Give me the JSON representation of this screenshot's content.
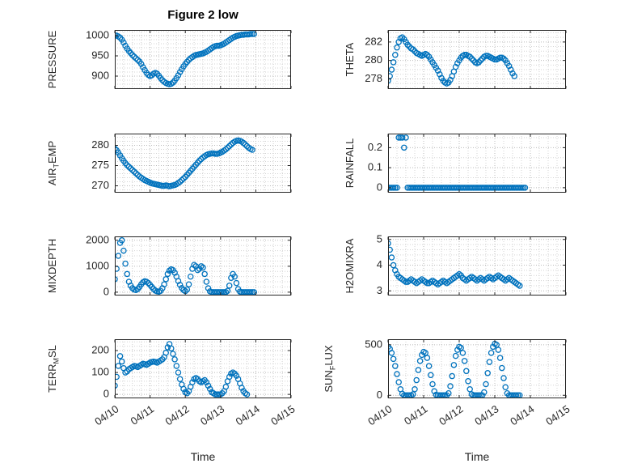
{
  "figure": {
    "title": "Figure 2 low",
    "xlabel": "Time",
    "marker_color": "#0072BD",
    "axis_color": "#262626",
    "grid_major_color": "#b9b9b9",
    "grid_minor_color": "#d3d3d3",
    "x_tick_labels": [
      "04/10",
      "04/11",
      "04/12",
      "04/13",
      "04/14",
      "04/15"
    ],
    "xlim_days": [
      0,
      5
    ],
    "x_minor_step": 0.25,
    "x_unit": "days from 04/10"
  },
  "chart_data": [
    {
      "type": "scatter",
      "id": "PRESSURE",
      "position": "row1-left",
      "ylabel": {
        "pre": "PRESSURE",
        "sub": "",
        "post": ""
      },
      "y_ticks": [
        900,
        950,
        1000
      ],
      "ylim": [
        868,
        1014
      ],
      "y_minor_step": 10,
      "x_start": 0,
      "x_step": 0.05,
      "values": [
        1001,
        1000,
        998,
        995,
        990,
        983,
        975,
        968,
        962,
        957,
        952,
        948,
        944,
        940,
        936,
        930,
        922,
        915,
        908,
        903,
        900,
        902,
        906,
        908,
        906,
        901,
        895,
        890,
        886,
        883,
        881,
        880,
        881,
        884,
        889,
        895,
        902,
        910,
        917,
        924,
        930,
        935,
        940,
        944,
        947,
        950,
        952,
        953,
        954,
        955,
        956,
        958,
        960,
        963,
        966,
        969,
        972,
        974,
        975,
        975,
        976,
        978,
        980,
        983,
        986,
        989,
        992,
        995,
        997,
        999,
        1000,
        1001,
        1002,
        1002,
        1003,
        1003,
        1003,
        1004,
        1004,
        1004
      ]
    },
    {
      "type": "scatter",
      "id": "THETA",
      "position": "row1-right",
      "ylabel": {
        "pre": "THETA",
        "sub": "",
        "post": ""
      },
      "y_ticks": [
        278,
        280,
        282
      ],
      "ylim": [
        276.9,
        283.3
      ],
      "y_minor_step": 0.5,
      "x_start": 0,
      "x_step": 0.05,
      "values": [
        277.8,
        278.3,
        279.0,
        279.8,
        280.6,
        281.4,
        282.0,
        282.4,
        282.5,
        282.3,
        282.0,
        281.7,
        281.5,
        281.3,
        281.2,
        281.0,
        280.8,
        280.7,
        280.6,
        280.5,
        280.6,
        280.7,
        280.6,
        280.4,
        280.1,
        279.8,
        279.5,
        279.2,
        278.9,
        278.5,
        278.1,
        277.8,
        277.6,
        277.5,
        277.6,
        277.9,
        278.3,
        278.8,
        279.3,
        279.7,
        280.0,
        280.3,
        280.5,
        280.6,
        280.6,
        280.5,
        280.4,
        280.2,
        280.0,
        279.8,
        279.7,
        279.8,
        280.0,
        280.2,
        280.4,
        280.5,
        280.5,
        280.4,
        280.3,
        280.2,
        280.1,
        280.1,
        280.2,
        280.3,
        280.3,
        280.2,
        280.0,
        279.7,
        279.4,
        279.0,
        278.6,
        278.3,
        null,
        null,
        null,
        null,
        null,
        null,
        null,
        null
      ]
    },
    {
      "type": "scatter",
      "id": "AIR_TEMP",
      "position": "row2-left",
      "ylabel": {
        "pre": "AIR",
        "sub": "T",
        "post": "EMP"
      },
      "y_ticks": [
        270,
        275,
        280
      ],
      "ylim": [
        268.3,
        282.9
      ],
      "y_minor_step": 1,
      "x_start": 0,
      "x_step": 0.05,
      "values": [
        279.2,
        278.8,
        278.2,
        277.5,
        276.8,
        276.2,
        275.6,
        275.1,
        274.7,
        274.3,
        273.9,
        273.5,
        273.1,
        272.7,
        272.3,
        272.0,
        271.7,
        271.4,
        271.2,
        271.0,
        270.8,
        270.6,
        270.5,
        270.4,
        270.3,
        270.2,
        270.1,
        270.0,
        270.0,
        270.1,
        270.0,
        269.9,
        270.0,
        270.1,
        270.2,
        270.4,
        270.7,
        271.0,
        271.4,
        271.8,
        272.2,
        272.7,
        273.2,
        273.7,
        274.2,
        274.7,
        275.2,
        275.7,
        276.2,
        276.6,
        277.0,
        277.3,
        277.6,
        277.8,
        277.9,
        278.0,
        278.0,
        277.9,
        277.9,
        278.0,
        278.2,
        278.4,
        278.7,
        279.0,
        279.4,
        279.8,
        280.2,
        280.6,
        280.9,
        281.1,
        281.2,
        281.1,
        280.9,
        280.6,
        280.2,
        279.8,
        279.4,
        279.1,
        278.9,
        null
      ]
    },
    {
      "type": "scatter",
      "id": "RAINFALL",
      "position": "row2-right",
      "ylabel": {
        "pre": "RAINFALL",
        "sub": "",
        "post": ""
      },
      "y_ticks": [
        0,
        0.1,
        0.2
      ],
      "ylim": [
        -0.025,
        0.27
      ],
      "y_minor_step": 0.05,
      "x_start": 0,
      "x_step": 0.05,
      "values": [
        0,
        0,
        0,
        0,
        0,
        0,
        0.25,
        0.25,
        0.25,
        0.2,
        0.25,
        0,
        0,
        0,
        0,
        0,
        0,
        0,
        0,
        0,
        0,
        0,
        0,
        0,
        0,
        0,
        0,
        0,
        0,
        0,
        0,
        0,
        0,
        0,
        0,
        0,
        0,
        0,
        0,
        0,
        0,
        0,
        0,
        0,
        0,
        0,
        0,
        0,
        0,
        0,
        0,
        0,
        0,
        0,
        0,
        0,
        0,
        0,
        0,
        0,
        0,
        0,
        0,
        0,
        0,
        0,
        0,
        0,
        0,
        0,
        0,
        0,
        0,
        0,
        0,
        0,
        0,
        0,
        null,
        null
      ]
    },
    {
      "type": "scatter",
      "id": "MIXDEPTH",
      "position": "row3-left",
      "ylabel": {
        "pre": "MIXDEPTH",
        "sub": "",
        "post": ""
      },
      "y_ticks": [
        0,
        1000,
        2000
      ],
      "ylim": [
        -130,
        2150
      ],
      "y_minor_step": 200,
      "x_start": 0,
      "x_step": 0.05,
      "values": [
        500,
        900,
        1400,
        1900,
        2000,
        1600,
        1100,
        700,
        400,
        250,
        150,
        100,
        80,
        120,
        200,
        300,
        380,
        420,
        400,
        350,
        280,
        200,
        120,
        60,
        30,
        20,
        50,
        150,
        300,
        500,
        700,
        830,
        880,
        850,
        750,
        600,
        430,
        280,
        160,
        80,
        40,
        100,
        300,
        600,
        900,
        1050,
        1000,
        850,
        900,
        1000,
        950,
        700,
        400,
        150,
        30,
        0,
        0,
        0,
        0,
        0,
        0,
        0,
        0,
        0,
        50,
        250,
        550,
        700,
        600,
        350,
        120,
        20,
        0,
        0,
        0,
        0,
        0,
        0,
        0,
        0
      ]
    },
    {
      "type": "scatter",
      "id": "H2OMIXRA",
      "position": "row3-right",
      "ylabel": {
        "pre": "H2OMIXRA",
        "sub": "",
        "post": ""
      },
      "y_ticks": [
        3,
        4,
        5
      ],
      "ylim": [
        2.82,
        5.12
      ],
      "y_minor_step": 0.2,
      "x_start": 0,
      "x_step": 0.05,
      "values": [
        4.85,
        4.6,
        4.3,
        4.0,
        3.8,
        3.65,
        3.55,
        3.5,
        3.45,
        3.4,
        3.35,
        3.35,
        3.4,
        3.45,
        3.4,
        3.35,
        3.3,
        3.35,
        3.4,
        3.45,
        3.4,
        3.35,
        3.3,
        3.3,
        3.35,
        3.4,
        3.35,
        3.3,
        3.25,
        3.3,
        3.35,
        3.4,
        3.35,
        3.3,
        3.35,
        3.4,
        3.45,
        3.5,
        3.55,
        3.6,
        3.65,
        3.6,
        3.5,
        3.45,
        3.4,
        3.45,
        3.5,
        3.55,
        3.5,
        3.45,
        3.4,
        3.45,
        3.5,
        3.45,
        3.4,
        3.45,
        3.5,
        3.55,
        3.5,
        3.45,
        3.5,
        3.55,
        3.6,
        3.55,
        3.5,
        3.45,
        3.4,
        3.45,
        3.5,
        3.45,
        3.4,
        3.35,
        3.3,
        3.25,
        3.2,
        null,
        null,
        null,
        null,
        null
      ]
    },
    {
      "type": "scatter",
      "id": "TERR_MSL",
      "position": "row4-left",
      "ylabel": {
        "pre": "TERR",
        "sub": "M",
        "post": "SL"
      },
      "y_ticks": [
        0,
        100,
        200
      ],
      "ylim": [
        -18,
        252
      ],
      "y_minor_step": 20,
      "x_start": 0,
      "x_step": 0.05,
      "values": [
        40,
        80,
        130,
        175,
        150,
        120,
        100,
        105,
        115,
        120,
        125,
        130,
        128,
        125,
        130,
        135,
        140,
        138,
        135,
        140,
        145,
        148,
        150,
        148,
        145,
        150,
        155,
        160,
        170,
        190,
        215,
        230,
        210,
        185,
        160,
        130,
        100,
        70,
        45,
        25,
        10,
        5,
        15,
        35,
        55,
        70,
        75,
        70,
        60,
        55,
        60,
        65,
        55,
        40,
        25,
        10,
        5,
        0,
        0,
        0,
        0,
        5,
        15,
        35,
        60,
        80,
        95,
        100,
        95,
        85,
        70,
        50,
        30,
        15,
        5,
        0,
        null,
        null,
        null,
        null
      ]
    },
    {
      "type": "scatter",
      "id": "SUN_FLUX",
      "position": "row4-right",
      "ylabel": {
        "pre": "SUN",
        "sub": "F",
        "post": "LUX"
      },
      "y_ticks": [
        0,
        500
      ],
      "ylim": [
        -30,
        555
      ],
      "y_minor_step": 100,
      "x_start": 0,
      "x_step": 0.05,
      "values": [
        480,
        460,
        420,
        360,
        290,
        210,
        130,
        60,
        15,
        0,
        0,
        0,
        0,
        0,
        10,
        60,
        150,
        250,
        340,
        400,
        430,
        420,
        370,
        290,
        200,
        110,
        40,
        5,
        0,
        0,
        0,
        0,
        0,
        0,
        20,
        90,
        190,
        300,
        390,
        450,
        480,
        470,
        420,
        340,
        240,
        140,
        60,
        10,
        0,
        0,
        0,
        0,
        0,
        0,
        30,
        110,
        220,
        330,
        420,
        480,
        510,
        500,
        450,
        370,
        270,
        170,
        80,
        20,
        0,
        0,
        0,
        0,
        0,
        0,
        0,
        null,
        null,
        null,
        null,
        null
      ]
    }
  ]
}
